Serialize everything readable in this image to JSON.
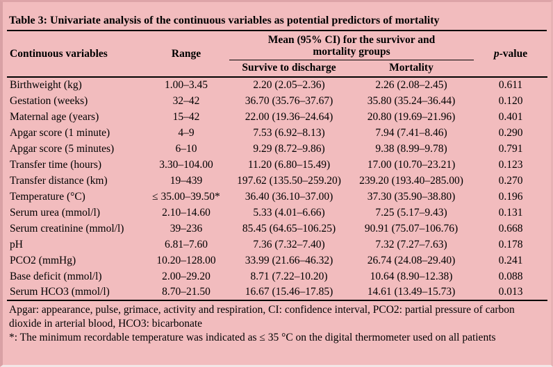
{
  "colors": {
    "page_background": "#f2bcbe",
    "rule": "#000000",
    "text": "#000000"
  },
  "table": {
    "title": "Table 3: Univariate analysis of the continuous variables as potential predictors of mortality",
    "headers": {
      "variables": "Continuous variables",
      "range": "Range",
      "group": "Mean (95% CI) for the survivor and mortality groups",
      "survive": "Survive to discharge",
      "mortality": "Mortality",
      "p_italic": "p",
      "p_rest": "-value"
    },
    "rows": [
      {
        "variable": "Birthweight (kg)",
        "range": "1.00–3.45",
        "survive": "2.20 (2.05–2.36)",
        "mortality": "2.26 (2.08–2.45)",
        "p": "0.611"
      },
      {
        "variable": "Gestation (weeks)",
        "range": "32–42",
        "survive": "36.70 (35.76–37.67)",
        "mortality": "35.80 (35.24–36.44)",
        "p": "0.120"
      },
      {
        "variable": "Maternal age (years)",
        "range": "15–42",
        "survive": "22.00 (19.36–24.64)",
        "mortality": "20.80 (19.69–21.96)",
        "p": "0.401"
      },
      {
        "variable": "Apgar score (1 minute)",
        "range": "4–9",
        "survive": "7.53 (6.92–8.13)",
        "mortality": "7.94 (7.41–8.46)",
        "p": "0.290"
      },
      {
        "variable": "Apgar score (5 minutes)",
        "range": "6–10",
        "survive": "9.29 (8.72–9.86)",
        "mortality": "9.38 (8.99–9.78)",
        "p": "0.791"
      },
      {
        "variable": "Transfer time (hours)",
        "range": "3.30–104.00",
        "survive": "11.20 (6.80–15.49)",
        "mortality": "17.00 (10.70–23.21)",
        "p": "0.123"
      },
      {
        "variable": "Transfer distance (km)",
        "range": "19–439",
        "survive": "197.62 (135.50–259.20)",
        "mortality": "239.20 (193.40–285.00)",
        "p": "0.270"
      },
      {
        "variable": "Temperature (°C)",
        "range": "≤ 35.00–39.50*",
        "survive": "36.40 (36.10–37.00)",
        "mortality": "37.30 (35.90–38.80)",
        "p": "0.196"
      },
      {
        "variable": "Serum urea (mmol/l)",
        "range": "2.10–14.60",
        "survive": "5.33 (4.01–6.66)",
        "mortality": "7.25 (5.17–9.43)",
        "p": "0.131"
      },
      {
        "variable": "Serum creatinine (mmol/l)",
        "range": "39–236",
        "survive": "85.45 (64.65–106.25)",
        "mortality": "90.91 (75.07–106.76)",
        "p": "0.668"
      },
      {
        "variable": "pH",
        "range": "6.81–7.60",
        "survive": "7.36 (7.32–7.40)",
        "mortality": "7.32 (7.27–7.63)",
        "p": "0.178"
      },
      {
        "variable": "PCO2 (mmHg)",
        "range": "10.20–128.00",
        "survive": "33.99 (21.66–46.32)",
        "mortality": "26.74 (24.08–29.40)",
        "p": "0.241"
      },
      {
        "variable": "Base deficit (mmol/l)",
        "range": "2.00–29.20",
        "survive": "8.71 (7.22–10.20)",
        "mortality": "10.64 (8.90–12.38)",
        "p": "0.088"
      },
      {
        "variable": "Serum HCO3 (mmol/l)",
        "range": "8.70–21.50",
        "survive": "16.67 (15.46–17.85)",
        "mortality": "14.61 (13.49–15.73)",
        "p": "0.013"
      }
    ],
    "notes": {
      "abbreviations": "Apgar: appearance, pulse, grimace, activity and respiration, CI: confidence interval, PCO2: partial pressure of carbon dioxide in arterial blood, HCO3: bicarbonate",
      "asterisk": "*: The minimum recordable temperature was indicated as ≤ 35 °C on the digital thermometer used on all patients"
    }
  }
}
